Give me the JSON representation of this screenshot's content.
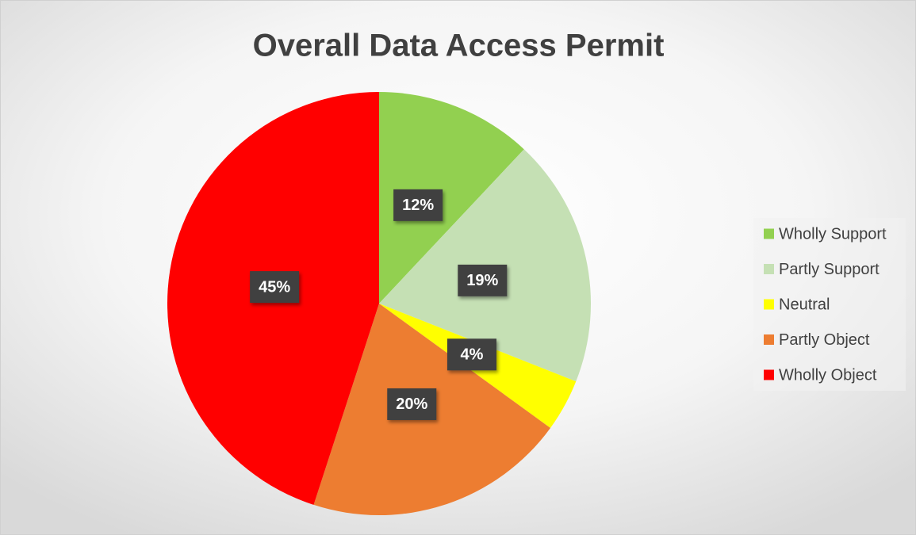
{
  "chart_data": {
    "type": "pie",
    "title": "Overall Data Access Permit",
    "categories": [
      "Wholly Support",
      "Partly Support",
      "Neutral",
      "Partly Object",
      "Wholly Object"
    ],
    "values": [
      12,
      19,
      4,
      20,
      45
    ],
    "value_labels": [
      "12%",
      "19%",
      "4%",
      "20%",
      "45%"
    ],
    "colors": [
      "#92d050",
      "#c5e0b4",
      "#ffff00",
      "#ed7d31",
      "#ff0000"
    ],
    "legend": "right"
  }
}
